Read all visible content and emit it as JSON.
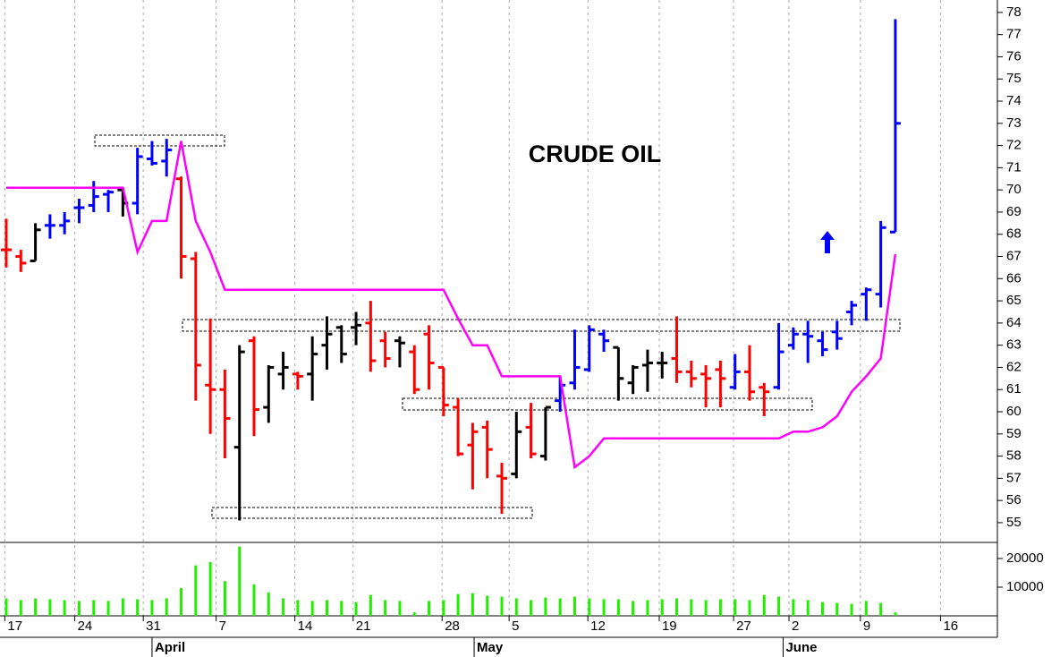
{
  "chart_data": [
    {
      "type": "ohlc",
      "title": "CRUDE OIL",
      "open": [
        67.3,
        67.0,
        66.8,
        68.4,
        68.4,
        69.2,
        69.3,
        69.8,
        70.0,
        69.4,
        71.4,
        71.3,
        70.5,
        66.9,
        61.2,
        61.0,
        58.4,
        63.2,
        60.2,
        61.7,
        61.7,
        61.7,
        63.0,
        63.8,
        63.8,
        64.0,
        63.2,
        63.2,
        62.7,
        63.5,
        62.0,
        60.2,
        58.5,
        59.3,
        57.1,
        57.2,
        59.3,
        58.0,
        60.5,
        61.3,
        61.9,
        63.5,
        62.9,
        61.3,
        62.1,
        62.2,
        62.4,
        61.8,
        61.7,
        61.9,
        61.1,
        61.8,
        61.1,
        61.1,
        63.0,
        63.5,
        63.2,
        63.6,
        64.5,
        65.3,
        65.3,
        68.1
      ],
      "high": [
        68.7,
        67.3,
        68.5,
        68.9,
        69.0,
        69.6,
        70.4,
        70.0,
        70.1,
        71.9,
        72.2,
        72.3,
        70.6,
        67.2,
        64.2,
        61.9,
        63.0,
        63.4,
        62.1,
        62.7,
        61.8,
        63.4,
        64.3,
        63.9,
        64.5,
        65.0,
        63.6,
        63.4,
        63.0,
        63.9,
        62.0,
        60.6,
        59.5,
        59.6,
        57.7,
        60.0,
        60.4,
        60.2,
        61.6,
        63.7,
        63.9,
        63.7,
        62.9,
        62.1,
        62.8,
        62.7,
        64.3,
        62.3,
        62.1,
        62.3,
        62.6,
        63.0,
        61.3,
        64.0,
        63.8,
        64.1,
        63.6,
        64.1,
        65.0,
        65.6,
        68.6,
        77.7
      ],
      "low": [
        66.5,
        66.3,
        66.8,
        67.8,
        68.0,
        68.5,
        69.0,
        69.0,
        68.8,
        68.9,
        71.1,
        70.6,
        66.0,
        60.5,
        59.0,
        57.9,
        55.1,
        58.9,
        59.5,
        61.0,
        61.0,
        60.5,
        61.9,
        62.2,
        63.0,
        61.8,
        62.0,
        62.0,
        60.8,
        61.0,
        59.8,
        58.0,
        56.5,
        57.0,
        55.4,
        57.0,
        57.9,
        57.8,
        60.0,
        61.0,
        61.8,
        62.7,
        60.5,
        60.8,
        60.9,
        61.5,
        61.3,
        61.1,
        60.2,
        60.2,
        61.0,
        60.5,
        59.8,
        61.0,
        62.8,
        62.2,
        62.5,
        62.8,
        63.9,
        64.1,
        64.7,
        68.1
      ],
      "close": [
        67.3,
        66.7,
        68.2,
        68.4,
        68.6,
        69.2,
        69.7,
        69.9,
        69.4,
        71.5,
        71.2,
        71.8,
        67.0,
        62.1,
        61.0,
        59.7,
        62.7,
        60.1,
        62.0,
        62.0,
        61.6,
        62.6,
        63.5,
        62.6,
        63.9,
        62.3,
        62.4,
        63.1,
        61.0,
        62.2,
        60.3,
        58.1,
        59.1,
        58.3,
        57.0,
        59.1,
        58.1,
        60.2,
        61.2,
        62.0,
        63.7,
        63.2,
        61.5,
        62.0,
        62.2,
        62.2,
        61.8,
        61.5,
        61.5,
        61.5,
        61.8,
        60.9,
        60.9,
        62.7,
        63.5,
        63.4,
        62.8,
        63.3,
        64.8,
        65.5,
        68.3,
        73.0
      ],
      "colors": [
        "#ff0000",
        "#ff0000",
        "#000000",
        "#0000ff",
        "#0000ff",
        "#0000ff",
        "#0000ff",
        "#0000ff",
        "#000000",
        "#0000ff",
        "#0000ff",
        "#0000ff",
        "#ff0000",
        "#ff0000",
        "#ff0000",
        "#ff0000",
        "#000000",
        "#ff0000",
        "#000000",
        "#000000",
        "#ff0000",
        "#000000",
        "#000000",
        "#000000",
        "#000000",
        "#ff0000",
        "#ff0000",
        "#000000",
        "#ff0000",
        "#ff0000",
        "#ff0000",
        "#ff0000",
        "#ff0000",
        "#ff0000",
        "#ff0000",
        "#000000",
        "#ff0000",
        "#000000",
        "#0000ff",
        "#0000ff",
        "#0000ff",
        "#0000ff",
        "#000000",
        "#000000",
        "#000000",
        "#000000",
        "#ff0000",
        "#ff0000",
        "#ff0000",
        "#ff0000",
        "#0000ff",
        "#ff0000",
        "#ff0000",
        "#0000ff",
        "#0000ff",
        "#0000ff",
        "#0000ff",
        "#0000ff",
        "#0000ff",
        "#0000ff",
        "#0000ff",
        "#0000ff"
      ],
      "stop_line": {
        "color": "#ff00ff",
        "values": [
          70.1,
          70.1,
          70.1,
          70.1,
          70.1,
          70.1,
          70.1,
          70.1,
          70.1,
          67.2,
          68.6,
          68.6,
          72.2,
          68.6,
          67.2,
          65.5,
          65.5,
          65.5,
          65.5,
          65.5,
          65.5,
          65.5,
          65.5,
          65.5,
          65.5,
          65.5,
          65.5,
          65.5,
          65.5,
          65.5,
          65.5,
          64.2,
          63.0,
          63.0,
          61.6,
          61.6,
          61.6,
          61.6,
          61.6,
          57.5,
          58.0,
          58.8,
          58.8,
          58.8,
          58.8,
          58.8,
          58.8,
          58.8,
          58.8,
          58.8,
          58.8,
          58.8,
          58.8,
          58.8,
          59.1,
          59.1,
          59.3,
          59.8,
          60.9,
          61.6,
          62.4,
          67.1
        ]
      },
      "xlim": [
        -0.43,
        68.0
      ],
      "ylim": [
        54.15,
        78.56
      ],
      "yticks": [
        55,
        56,
        57,
        58,
        59,
        60,
        61,
        62,
        63,
        64,
        65,
        66,
        67,
        68,
        69,
        70,
        71,
        72,
        73,
        74,
        75,
        76,
        77,
        78
      ]
    },
    {
      "type": "bar",
      "color": "#22ee00",
      "values": [
        6100,
        5500,
        6100,
        5800,
        5500,
        5200,
        5500,
        5200,
        6100,
        5800,
        5500,
        6100,
        9700,
        17600,
        18800,
        12100,
        24200,
        10900,
        8200,
        6100,
        5500,
        5200,
        5500,
        5200,
        4800,
        7300,
        5500,
        5200,
        1200,
        5200,
        5500,
        7600,
        7900,
        7000,
        6700,
        6100,
        5500,
        6400,
        6100,
        6700,
        6100,
        5800,
        5800,
        5200,
        5500,
        5800,
        6100,
        5800,
        5500,
        5800,
        5800,
        5500,
        7300,
        6700,
        5800,
        5500,
        4800,
        4500,
        4200,
        5200,
        4500,
        1200
      ],
      "xlim": [
        -0.43,
        68.0
      ],
      "ylim": [
        0,
        25300
      ],
      "yticks": [
        10000,
        20000
      ],
      "xticks": [
        {
          "value": -0.1,
          "label": "17"
        },
        {
          "value": 4.7,
          "label": "24"
        },
        {
          "value": 9.4,
          "label": "31"
        },
        {
          "value": 14.4,
          "label": "7"
        },
        {
          "value": 19.8,
          "label": "14"
        },
        {
          "value": 23.8,
          "label": "21"
        },
        {
          "value": 29.9,
          "label": "28"
        },
        {
          "value": 34.5,
          "label": "5"
        },
        {
          "value": 39.9,
          "label": "12"
        },
        {
          "value": 44.8,
          "label": "19"
        },
        {
          "value": 49.9,
          "label": "27"
        },
        {
          "value": 53.7,
          "label": "2"
        },
        {
          "value": 58.6,
          "label": "9"
        },
        {
          "value": 64.1,
          "label": "16"
        }
      ],
      "months": [
        {
          "value": 10.0,
          "label": "April"
        },
        {
          "value": 32.1,
          "label": "May"
        },
        {
          "value": 53.3,
          "label": "June"
        }
      ]
    }
  ]
}
